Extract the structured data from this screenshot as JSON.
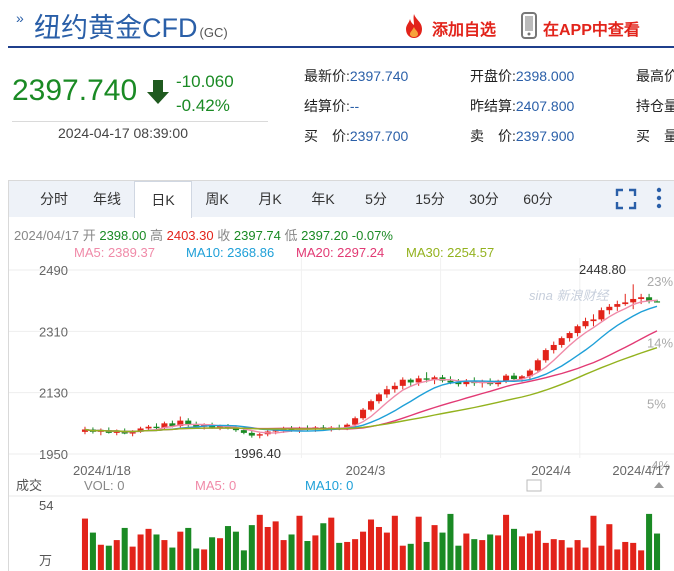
{
  "header": {
    "title": "纽约黄金CFD",
    "code": "(GC)",
    "add_watch": "添加自选",
    "open_app": "在APP中查看"
  },
  "quote": {
    "price": "2397.740",
    "change": "-10.060",
    "change_pct": "-0.42%",
    "datetime": "2024-04-17 08:39:00",
    "fields": [
      {
        "label": "最新价:",
        "value": "2397.740"
      },
      {
        "label": "开盘价:",
        "value": "2398.000"
      },
      {
        "label": "最高价",
        "value": ""
      },
      {
        "label": "结算价:",
        "value": "--"
      },
      {
        "label": "昨结算:",
        "value": "2407.800"
      },
      {
        "label": "持仓量",
        "value": ""
      },
      {
        "label": "买　价:",
        "value": "2397.700"
      },
      {
        "label": "卖　价:",
        "value": "2397.900"
      },
      {
        "label": "买　量",
        "value": ""
      }
    ],
    "down_color": "#1a8a24"
  },
  "tabs": [
    "分时",
    "年线",
    "日K",
    "周K",
    "月K",
    "年K",
    "5分",
    "15分",
    "30分",
    "60分"
  ],
  "active_tab": "日K",
  "ohlc": {
    "date": "2024/04/17",
    "open_label": "开",
    "open": "2398.00",
    "high_label": "高",
    "high": "2403.30",
    "close_label": "收",
    "close": "2397.74",
    "low_label": "低",
    "low": "2397.20",
    "change_pct": "-0.07%"
  },
  "ma_legend": [
    {
      "label": "MA5: 2389.37",
      "color": "#f08aa8"
    },
    {
      "label": "MA10: 2368.86",
      "color": "#1fa0d8"
    },
    {
      "label": "MA20: 2297.24",
      "color": "#e23a74"
    },
    {
      "label": "MA30: 2254.57",
      "color": "#93b21e"
    }
  ],
  "watermark": "sina 新浪财经",
  "volume": {
    "title": "成交",
    "vol_label": "VOL: 0",
    "ma5_label": "MA5: 0",
    "ma10_label": "MA10: 0",
    "max_label": "54",
    "unit_label": "万"
  },
  "chart_data": {
    "type": "candlestick",
    "y_ticks": [
      "2490",
      "2310",
      "2130",
      "1950"
    ],
    "y_tick_values": [
      2490,
      2310,
      2130,
      1950
    ],
    "pct_ticks": [
      "23%",
      "14%",
      "5%",
      "-4%"
    ],
    "x_labels": [
      "2024/1/18",
      "2024/3",
      "2024/4",
      "2024/4/17"
    ],
    "ylim": [
      1950,
      2490
    ],
    "max_label": "2448.80",
    "min_label": "1996.40",
    "candles": [
      [
        2015,
        2030,
        2008,
        2022
      ],
      [
        2022,
        2028,
        2010,
        2015
      ],
      [
        2015,
        2025,
        2005,
        2020
      ],
      [
        2020,
        2028,
        2010,
        2012
      ],
      [
        2012,
        2022,
        2005,
        2018
      ],
      [
        2018,
        2025,
        2008,
        2010
      ],
      [
        2010,
        2020,
        2002,
        2016
      ],
      [
        2016,
        2030,
        2012,
        2025
      ],
      [
        2025,
        2035,
        2018,
        2030
      ],
      [
        2030,
        2040,
        2020,
        2026
      ],
      [
        2026,
        2045,
        2022,
        2040
      ],
      [
        2040,
        2048,
        2028,
        2032
      ],
      [
        2032,
        2060,
        2028,
        2048
      ],
      [
        2048,
        2055,
        2030,
        2036
      ],
      [
        2036,
        2045,
        2025,
        2030
      ],
      [
        2030,
        2040,
        2022,
        2036
      ],
      [
        2036,
        2042,
        2024,
        2028
      ],
      [
        2028,
        2036,
        2020,
        2032
      ],
      [
        2032,
        2038,
        2022,
        2026
      ],
      [
        2026,
        2034,
        2015,
        2020
      ],
      [
        2020,
        2028,
        2008,
        2012
      ],
      [
        2012,
        2020,
        1998,
        2004
      ],
      [
        2004,
        2012,
        1996,
        2008
      ],
      [
        2008,
        2020,
        2002,
        2016
      ],
      [
        2016,
        2025,
        2008,
        2020
      ],
      [
        2020,
        2030,
        2012,
        2024
      ],
      [
        2024,
        2032,
        2015,
        2020
      ],
      [
        2020,
        2030,
        2012,
        2026
      ],
      [
        2026,
        2034,
        2016,
        2022
      ],
      [
        2022,
        2032,
        2015,
        2028
      ],
      [
        2028,
        2035,
        2018,
        2024
      ],
      [
        2024,
        2032,
        2016,
        2028
      ],
      [
        2028,
        2036,
        2020,
        2025
      ],
      [
        2025,
        2040,
        2020,
        2036
      ],
      [
        2036,
        2060,
        2030,
        2055
      ],
      [
        2055,
        2085,
        2050,
        2080
      ],
      [
        2080,
        2110,
        2075,
        2105
      ],
      [
        2105,
        2130,
        2098,
        2125
      ],
      [
        2125,
        2150,
        2115,
        2140
      ],
      [
        2140,
        2160,
        2130,
        2150
      ],
      [
        2150,
        2175,
        2140,
        2168
      ],
      [
        2168,
        2172,
        2150,
        2160
      ],
      [
        2160,
        2180,
        2150,
        2172
      ],
      [
        2172,
        2190,
        2160,
        2168
      ],
      [
        2168,
        2180,
        2155,
        2175
      ],
      [
        2175,
        2182,
        2160,
        2165
      ],
      [
        2165,
        2178,
        2155,
        2160
      ],
      [
        2160,
        2170,
        2148,
        2155
      ],
      [
        2155,
        2170,
        2148,
        2165
      ],
      [
        2165,
        2175,
        2150,
        2158
      ],
      [
        2158,
        2168,
        2145,
        2162
      ],
      [
        2162,
        2172,
        2150,
        2155
      ],
      [
        2155,
        2168,
        2148,
        2165
      ],
      [
        2165,
        2185,
        2158,
        2180
      ],
      [
        2180,
        2188,
        2165,
        2170
      ],
      [
        2170,
        2182,
        2162,
        2178
      ],
      [
        2178,
        2200,
        2170,
        2195
      ],
      [
        2195,
        2230,
        2190,
        2225
      ],
      [
        2225,
        2260,
        2218,
        2255
      ],
      [
        2255,
        2280,
        2245,
        2270
      ],
      [
        2270,
        2295,
        2262,
        2290
      ],
      [
        2290,
        2310,
        2280,
        2305
      ],
      [
        2305,
        2330,
        2295,
        2325
      ],
      [
        2325,
        2350,
        2318,
        2340
      ],
      [
        2340,
        2360,
        2325,
        2345
      ],
      [
        2345,
        2380,
        2340,
        2372
      ],
      [
        2372,
        2390,
        2360,
        2382
      ],
      [
        2382,
        2400,
        2370,
        2390
      ],
      [
        2390,
        2420,
        2385,
        2395
      ],
      [
        2395,
        2448,
        2375,
        2405
      ],
      [
        2405,
        2420,
        2390,
        2410
      ],
      [
        2410,
        2420,
        2392,
        2398
      ],
      [
        2398,
        2403,
        2397,
        2397
      ]
    ]
  }
}
